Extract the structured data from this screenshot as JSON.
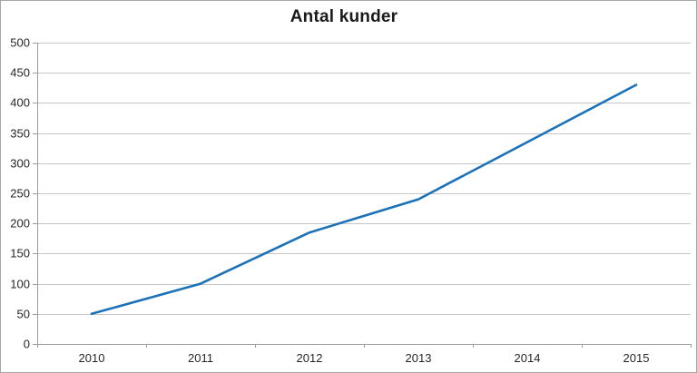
{
  "page": {
    "background": "#ffffff",
    "border_color": "#a6a6a6"
  },
  "chart_data": {
    "type": "line",
    "title": "Antal kunder",
    "categories": [
      "2010",
      "2011",
      "2012",
      "2013",
      "2014",
      "2015"
    ],
    "values": [
      50,
      100,
      185,
      240,
      335,
      430
    ],
    "series": [
      {
        "name": "Antal kunder",
        "values": [
          50,
          100,
          185,
          240,
          335,
          430
        ]
      }
    ],
    "xlabel": "",
    "ylabel": "",
    "ylim": [
      0,
      500
    ],
    "yticks": [
      0,
      50,
      100,
      150,
      200,
      250,
      300,
      350,
      400,
      450,
      500
    ],
    "grid": "horizontal",
    "legend_position": "none",
    "colors": {
      "line": "#1c72b8",
      "gridline": "#c6c6c6",
      "axis": "#9c9c9c",
      "tick_label": "#262626",
      "title": "#1a1a1a"
    }
  }
}
